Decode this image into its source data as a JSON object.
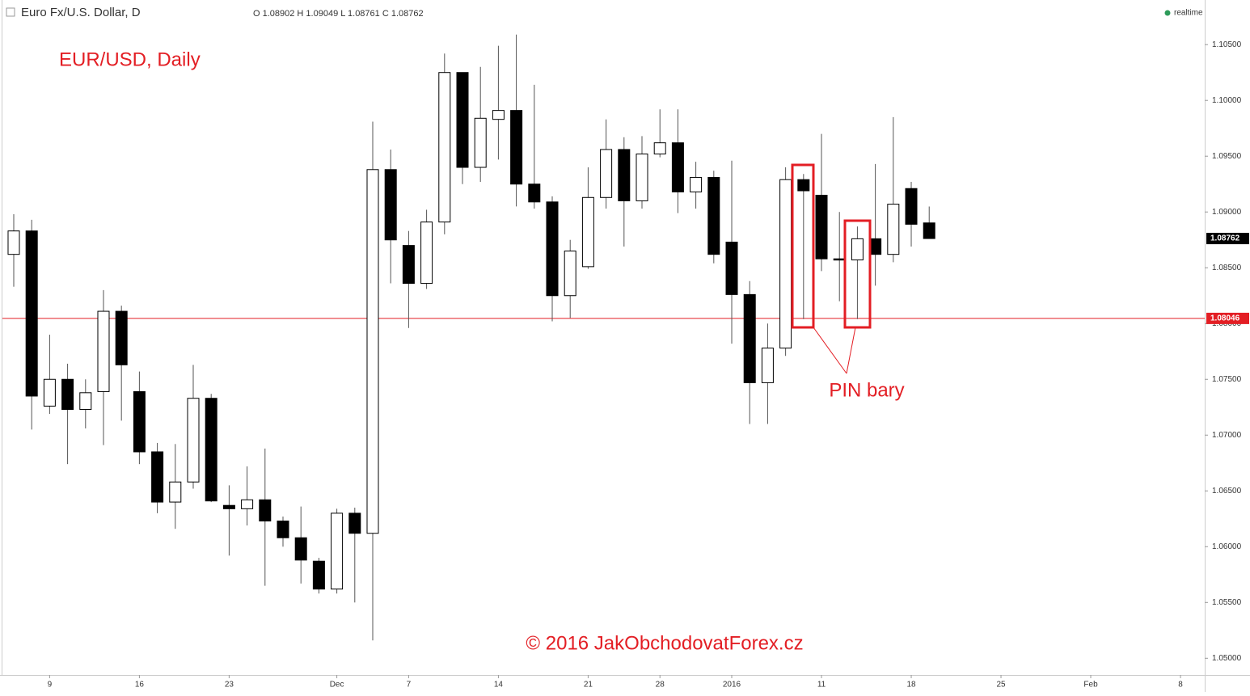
{
  "chart_data": {
    "type": "candlestick",
    "symbol": "Euro Fx/U.S. Dollar, D",
    "ohlc_text": "O 1.08902 H 1.09049 L 1.08761 C 1.08762",
    "status": "realtime",
    "title": "EUR/USD, Daily",
    "annotation": "PIN bary",
    "footer": "© 2016 JakObchodovatForex.cz",
    "up_color": "#ffffff",
    "down_color": "#000000",
    "wick_color": "#555555",
    "open": [
      1.0862,
      1.0883,
      1.0726,
      1.075,
      1.0723,
      1.0739,
      1.0811,
      1.0739,
      1.0685,
      1.064,
      1.0658,
      1.0733,
      1.0637,
      1.0634,
      1.0642,
      1.0623,
      1.0608,
      1.0587,
      1.0562,
      1.063,
      1.0612,
      1.0938,
      1.087,
      1.0836,
      1.0891,
      1.1025,
      1.094,
      1.0983,
      1.0991,
      1.0925,
      1.0909,
      1.0825,
      1.0851,
      1.0913,
      1.0956,
      1.091,
      1.0952,
      1.0962,
      1.0918,
      1.0931,
      1.0873,
      1.0826,
      1.0747,
      1.0778,
      1.0929,
      1.0915,
      1.0858,
      1.0857,
      1.0876,
      1.0862,
      1.0921,
      1.08902
    ],
    "high": [
      1.0898,
      1.0893,
      1.079,
      1.0764,
      1.075,
      1.083,
      1.0816,
      1.0757,
      1.0693,
      1.0692,
      1.0763,
      1.0737,
      1.0655,
      1.0672,
      1.0688,
      1.0627,
      1.0636,
      1.059,
      1.0634,
      1.0635,
      1.0981,
      1.0956,
      1.0883,
      1.0902,
      1.1042,
      1.1025,
      1.103,
      1.1049,
      1.1059,
      1.1014,
      1.0914,
      1.0875,
      1.094,
      1.0983,
      1.0967,
      1.0968,
      1.0992,
      1.0992,
      1.0945,
      1.0937,
      1.0946,
      1.0838,
      1.08,
      1.094,
      1.0934,
      1.097,
      1.09,
      1.0887,
      1.0943,
      1.0985,
      1.0927,
      1.09049
    ],
    "low": [
      1.0833,
      1.0705,
      1.0719,
      1.0674,
      1.0706,
      1.0691,
      1.0713,
      1.0674,
      1.063,
      1.0616,
      1.0652,
      1.064,
      1.0592,
      1.0619,
      1.0565,
      1.06,
      1.0567,
      1.0558,
      1.0558,
      1.055,
      1.0516,
      1.0836,
      1.0796,
      1.0831,
      1.088,
      1.0925,
      1.0927,
      1.0947,
      1.0905,
      1.0903,
      1.0802,
      1.0805,
      1.0849,
      1.0903,
      1.0869,
      1.0903,
      1.0949,
      1.0899,
      1.0903,
      1.0854,
      1.0782,
      1.071,
      1.071,
      1.0771,
      1.0804,
      1.0847,
      1.082,
      1.0804,
      1.0834,
      1.0855,
      1.0869,
      1.08761
    ],
    "close": [
      1.0883,
      1.0735,
      1.075,
      1.0723,
      1.0738,
      1.0811,
      1.0763,
      1.0685,
      1.064,
      1.0658,
      1.0733,
      1.0641,
      1.0634,
      1.0642,
      1.0623,
      1.0608,
      1.0588,
      1.0562,
      1.063,
      1.0612,
      1.0938,
      1.0875,
      1.0836,
      1.0891,
      1.1025,
      1.094,
      1.0984,
      1.0991,
      1.0925,
      1.0909,
      1.0825,
      1.0865,
      1.0913,
      1.0956,
      1.091,
      1.0952,
      1.0962,
      1.0918,
      1.0931,
      1.0862,
      1.0826,
      1.0747,
      1.0778,
      1.0929,
      1.0919,
      1.0858,
      1.0857,
      1.0876,
      1.0862,
      1.0907,
      1.0889,
      1.08762
    ],
    "xlim": [
      -0.63,
      66.35
    ],
    "xticks": [
      {
        "value": 2,
        "label": "9"
      },
      {
        "value": 7,
        "label": "16"
      },
      {
        "value": 12,
        "label": "23"
      },
      {
        "value": 18,
        "label": "Dec"
      },
      {
        "value": 22,
        "label": "7"
      },
      {
        "value": 27,
        "label": "14"
      },
      {
        "value": 32,
        "label": "21"
      },
      {
        "value": 36,
        "label": "28"
      },
      {
        "value": 40,
        "label": "2016"
      },
      {
        "value": 45,
        "label": "11"
      },
      {
        "value": 50,
        "label": "18"
      },
      {
        "value": 55,
        "label": "25"
      },
      {
        "value": 60,
        "label": "Feb"
      },
      {
        "value": 65,
        "label": "8"
      }
    ],
    "ylim": [
      1.0485,
      1.109
    ],
    "yticks": [
      {
        "value": 1.05,
        "label": "1.05000"
      },
      {
        "value": 1.055,
        "label": "1.05500"
      },
      {
        "value": 1.06,
        "label": "1.06000"
      },
      {
        "value": 1.065,
        "label": "1.06500"
      },
      {
        "value": 1.07,
        "label": "1.07000"
      },
      {
        "value": 1.075,
        "label": "1.07500"
      },
      {
        "value": 1.08,
        "label": "1.08000"
      },
      {
        "value": 1.085,
        "label": "1.08500"
      },
      {
        "value": 1.09,
        "label": "1.09000"
      },
      {
        "value": 1.095,
        "label": "1.09500"
      },
      {
        "value": 1.1,
        "label": "1.10000"
      },
      {
        "value": 1.105,
        "label": "1.10500"
      }
    ],
    "hline": {
      "value": 1.08046,
      "label": "1.08046",
      "color": "#e31e24"
    },
    "last_price": {
      "value": 1.08762,
      "label": "1.08762",
      "color": "#000000"
    }
  }
}
